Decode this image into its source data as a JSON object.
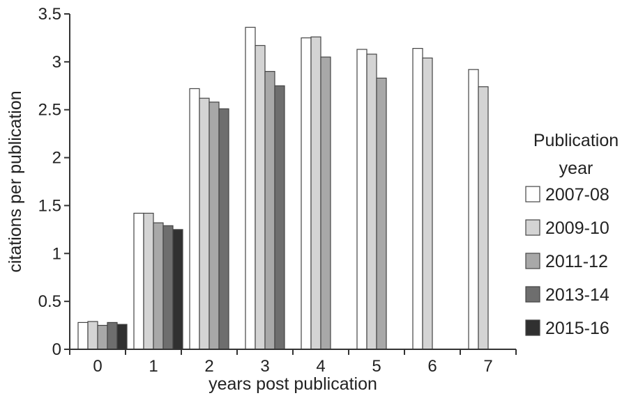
{
  "chart_data": {
    "type": "bar",
    "title": "",
    "xlabel": "years post publication",
    "ylabel": "citations per publication",
    "ylim": [
      0,
      3.5
    ],
    "yticks": [
      "0",
      "0.5",
      "1",
      "1.5",
      "2",
      "2.5",
      "3",
      "3.5"
    ],
    "categories": [
      "0",
      "1",
      "2",
      "3",
      "4",
      "5",
      "6",
      "7"
    ],
    "legend_title": "Publication year",
    "legend_position": "right",
    "grid": false,
    "series": [
      {
        "name": "2007-08",
        "color": "#ffffff",
        "values": [
          0.28,
          1.42,
          2.72,
          3.36,
          3.25,
          3.13,
          3.14,
          2.92
        ]
      },
      {
        "name": "2009-10",
        "color": "#d4d4d4",
        "values": [
          0.29,
          1.42,
          2.62,
          3.17,
          3.26,
          3.08,
          3.04,
          2.74
        ]
      },
      {
        "name": "2011-12",
        "color": "#a8a8a8",
        "values": [
          0.25,
          1.32,
          2.58,
          2.9,
          3.05,
          2.83,
          null,
          null
        ]
      },
      {
        "name": "2013-14",
        "color": "#6e6e6e",
        "values": [
          0.28,
          1.29,
          2.51,
          2.75,
          null,
          null,
          null,
          null
        ]
      },
      {
        "name": "2015-16",
        "color": "#303030",
        "values": [
          0.26,
          1.25,
          null,
          null,
          null,
          null,
          null,
          null
        ]
      }
    ]
  }
}
